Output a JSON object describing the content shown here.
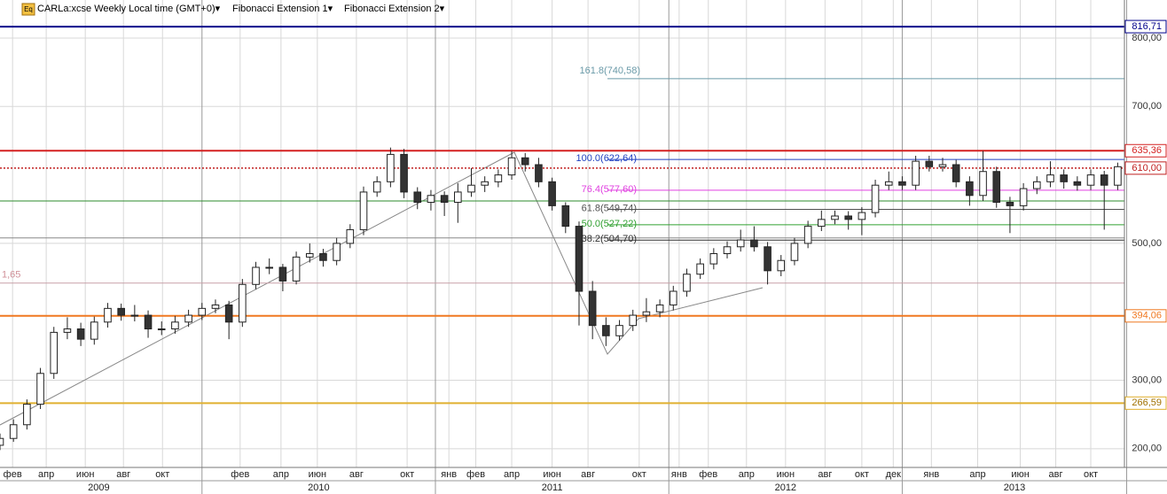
{
  "chart_data": {
    "type": "candlestick",
    "header": [
      "CARLa:xcse Weekly Local time (GMT+0)▾",
      "Fibonacci Extension 1▾",
      "Fibonacci Extension 2▾"
    ],
    "header_icon": "Eq",
    "xlim": [
      0,
      250.5
    ],
    "ylim": [
      172.6,
      855.6
    ],
    "yticks": [
      {
        "value": 200,
        "label": "200,00"
      },
      {
        "value": 300,
        "label": "300,00"
      },
      {
        "value": 500,
        "label": "500,00"
      },
      {
        "value": 700,
        "label": "700,00"
      },
      {
        "value": 800,
        "label": "800,00"
      }
    ],
    "xticks": [
      {
        "value": 2.8,
        "label": "фев"
      },
      {
        "value": 10.3,
        "label": "апр"
      },
      {
        "value": 19,
        "label": "июн"
      },
      {
        "value": 27.5,
        "label": "авг"
      },
      {
        "value": 36.2,
        "label": "окт"
      },
      {
        "value": 53.5,
        "label": "фев"
      },
      {
        "value": 62.6,
        "label": "апр"
      },
      {
        "value": 70.7,
        "label": "июн"
      },
      {
        "value": 79.4,
        "label": "авг"
      },
      {
        "value": 90.7,
        "label": "окт"
      },
      {
        "value": 100,
        "label": "янв"
      },
      {
        "value": 106,
        "label": "фев"
      },
      {
        "value": 114,
        "label": "апр"
      },
      {
        "value": 123,
        "label": "июн"
      },
      {
        "value": 131,
        "label": "авг"
      },
      {
        "value": 142.4,
        "label": "окт"
      },
      {
        "value": 151.3,
        "label": "янв"
      },
      {
        "value": 157.8,
        "label": "фев"
      },
      {
        "value": 166.3,
        "label": "апр"
      },
      {
        "value": 175,
        "label": "июн"
      },
      {
        "value": 183.8,
        "label": "авг"
      },
      {
        "value": 192,
        "label": "окт"
      },
      {
        "value": 199,
        "label": "дек"
      },
      {
        "value": 207.5,
        "label": "янв"
      },
      {
        "value": 217.8,
        "label": "апр"
      },
      {
        "value": 227.3,
        "label": "июн"
      },
      {
        "value": 235.2,
        "label": "авг"
      },
      {
        "value": 243,
        "label": "окт"
      }
    ],
    "years": [
      {
        "value": 22,
        "label": "2009"
      },
      {
        "value": 71,
        "label": "2010"
      },
      {
        "value": 123,
        "label": "2011"
      },
      {
        "value": 175,
        "label": "2012"
      },
      {
        "value": 226,
        "label": "2013"
      }
    ],
    "year_separators": [
      45,
      97,
      149,
      201,
      251
    ],
    "x": [
      0,
      3,
      6,
      9,
      12,
      15,
      18,
      21,
      24,
      27,
      30,
      33,
      36,
      39,
      42,
      45,
      48,
      51,
      54,
      57,
      60,
      63,
      66,
      69,
      72,
      75,
      78,
      81,
      84,
      87,
      90,
      93,
      96,
      99,
      102,
      105,
      108,
      111,
      114,
      117,
      120,
      123,
      126,
      129,
      132,
      135,
      138,
      141,
      144,
      147,
      150,
      153,
      156,
      159,
      162,
      165,
      168,
      171,
      174,
      177,
      180,
      183,
      186,
      189,
      192,
      195,
      198,
      201,
      204,
      207,
      210,
      213,
      216,
      219,
      222,
      225,
      228,
      231,
      234,
      237,
      240,
      243,
      246,
      249
    ],
    "ohlc": [
      [
        205,
        222,
        198,
        215
      ],
      [
        215,
        243,
        210,
        235
      ],
      [
        235,
        272,
        228,
        265
      ],
      [
        265,
        318,
        258,
        310
      ],
      [
        310,
        378,
        302,
        370
      ],
      [
        370,
        392,
        360,
        375
      ],
      [
        375,
        384,
        350,
        360
      ],
      [
        360,
        393,
        352,
        385
      ],
      [
        385,
        413,
        377,
        405
      ],
      [
        405,
        412,
        387,
        395
      ],
      [
        395,
        410,
        386,
        395
      ],
      [
        395,
        402,
        362,
        375
      ],
      [
        375,
        386,
        366,
        375
      ],
      [
        375,
        394,
        368,
        385
      ],
      [
        385,
        403,
        378,
        395
      ],
      [
        395,
        413,
        388,
        405
      ],
      [
        405,
        418,
        398,
        410
      ],
      [
        410,
        416,
        360,
        385
      ],
      [
        385,
        448,
        378,
        440
      ],
      [
        440,
        473,
        433,
        465
      ],
      [
        465,
        478,
        455,
        465
      ],
      [
        465,
        470,
        430,
        445
      ],
      [
        445,
        488,
        440,
        480
      ],
      [
        480,
        500,
        472,
        485
      ],
      [
        485,
        492,
        466,
        475
      ],
      [
        475,
        508,
        468,
        500
      ],
      [
        500,
        528,
        493,
        520
      ],
      [
        520,
        583,
        512,
        575
      ],
      [
        575,
        598,
        568,
        590
      ],
      [
        590,
        640,
        582,
        630
      ],
      [
        630,
        638,
        566,
        575
      ],
      [
        575,
        582,
        550,
        560
      ],
      [
        560,
        578,
        548,
        570
      ],
      [
        570,
        576,
        540,
        560
      ],
      [
        560,
        588,
        530,
        575
      ],
      [
        575,
        610,
        568,
        585
      ],
      [
        585,
        598,
        575,
        590
      ],
      [
        590,
        608,
        582,
        600
      ],
      [
        600,
        635,
        593,
        625
      ],
      [
        625,
        632,
        605,
        615
      ],
      [
        615,
        625,
        582,
        590
      ],
      [
        590,
        596,
        548,
        555
      ],
      [
        555,
        560,
        515,
        525
      ],
      [
        525,
        532,
        380,
        430
      ],
      [
        430,
        445,
        360,
        380
      ],
      [
        380,
        392,
        350,
        365
      ],
      [
        365,
        388,
        358,
        380
      ],
      [
        380,
        403,
        372,
        395
      ],
      [
        395,
        420,
        385,
        400
      ],
      [
        400,
        418,
        392,
        410
      ],
      [
        410,
        438,
        402,
        430
      ],
      [
        430,
        463,
        422,
        455
      ],
      [
        455,
        478,
        448,
        470
      ],
      [
        470,
        493,
        462,
        485
      ],
      [
        485,
        503,
        478,
        495
      ],
      [
        495,
        520,
        488,
        505
      ],
      [
        505,
        525,
        488,
        495
      ],
      [
        495,
        502,
        440,
        460
      ],
      [
        460,
        483,
        452,
        475
      ],
      [
        475,
        508,
        468,
        500
      ],
      [
        500,
        533,
        493,
        525
      ],
      [
        525,
        548,
        518,
        535
      ],
      [
        535,
        548,
        528,
        540
      ],
      [
        540,
        547,
        520,
        535
      ],
      [
        535,
        553,
        512,
        545
      ],
      [
        545,
        593,
        538,
        585
      ],
      [
        585,
        605,
        578,
        590
      ],
      [
        590,
        598,
        578,
        585
      ],
      [
        585,
        628,
        578,
        620
      ],
      [
        620,
        628,
        605,
        612
      ],
      [
        612,
        625,
        605,
        615
      ],
      [
        615,
        622,
        582,
        590
      ],
      [
        590,
        598,
        555,
        570
      ],
      [
        570,
        635,
        562,
        605
      ],
      [
        605,
        612,
        552,
        560
      ],
      [
        560,
        568,
        515,
        555
      ],
      [
        555,
        588,
        548,
        580
      ],
      [
        580,
        598,
        572,
        590
      ],
      [
        590,
        620,
        582,
        600
      ],
      [
        600,
        608,
        580,
        590
      ],
      [
        590,
        598,
        577,
        585
      ],
      [
        585,
        608,
        578,
        600
      ],
      [
        600,
        606,
        520,
        585
      ],
      [
        585,
        618,
        578,
        612
      ]
    ],
    "up_color": "#ffffff",
    "down_color": "#333333",
    "levels": [
      {
        "value": 816.71,
        "label": "816,71",
        "color": "#00008b",
        "style": "solid"
      },
      {
        "value": 635.36,
        "label": "635,36",
        "color": "#d42020",
        "style": "solid"
      },
      {
        "value": 610,
        "label": "610,00",
        "color": "#c02020",
        "style": "dotted"
      },
      {
        "value": 394.06,
        "label": "394,06",
        "color": "#f07820",
        "style": "solid"
      },
      {
        "value": 266.59,
        "label": "266,59",
        "color": "#e0b030",
        "style": "solid"
      }
    ],
    "plain_lines": [
      {
        "value": 562,
        "color": "#2e8b2e"
      },
      {
        "value": 442,
        "color": "#c8a0a8"
      },
      {
        "value": 508,
        "color": "#888888"
      }
    ],
    "left_label": {
      "value": 442,
      "label": "1,65",
      "color": "#d09098"
    },
    "fib_levels": [
      {
        "value": 740.58,
        "label": "161.8(740,58)",
        "color": "#6a9aa8"
      },
      {
        "value": 622.64,
        "label": "100.0(622,64)",
        "color": "#2040c0"
      },
      {
        "value": 577.6,
        "label": "76.4(577,60)",
        "color": "#e040e0"
      },
      {
        "value": 549.74,
        "label": "61.8(549,74)",
        "color": "#505050"
      },
      {
        "value": 527.22,
        "label": "50.0(527,22)",
        "color": "#30a030"
      },
      {
        "value": 504.7,
        "label": "38.2(504,70)",
        "color": "#303030"
      }
    ]
  }
}
